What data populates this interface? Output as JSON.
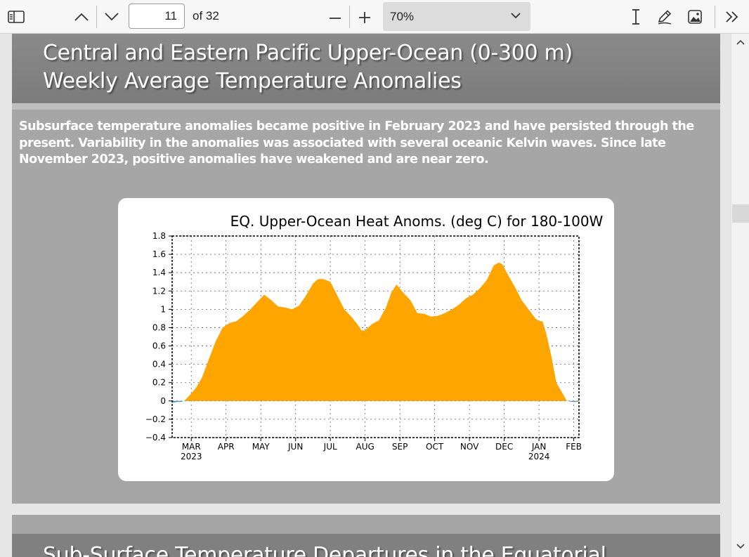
{
  "toolbar": {
    "page_current": "11",
    "page_total_label": "of 32",
    "zoom_label": "70%",
    "icons": [
      "sidebar-toggle-icon",
      "chevron-up-icon",
      "chevron-down-icon",
      "zoom-out-icon",
      "zoom-in-icon",
      "dropdown-caret-icon",
      "text-cursor-icon",
      "draw-pen-icon",
      "add-image-icon",
      "more-tools-icon"
    ]
  },
  "slide": {
    "title_line1": "Central and Eastern Pacific Upper-Ocean (0-300 m)",
    "title_line2": "Weekly Average Temperature Anomalies",
    "body_line1": "Subsurface temperature anomalies became positive in February 2023 and have persisted through the",
    "body_line2": "present.  Variability in the anomalies was associated with several oceanic Kelvin waves.  Since late",
    "body_line3": "November 2023, positive anomalies have weakened and are near zero."
  },
  "next_slide": {
    "title_partial": "Sub-Surface Temperature Departures in the Equatorial"
  },
  "chart_data": {
    "type": "area",
    "title": "EQ. Upper-Ocean Heat Anoms. (deg C) for 180-100W",
    "y_ticks": [
      "1.8",
      "1.6",
      "1.4",
      "1.2",
      "1",
      "0.8",
      "0.6",
      "0.4",
      "0.2",
      "0",
      "-0.2",
      "-0.4"
    ],
    "ylim": [
      -0.4,
      1.8
    ],
    "x_ticks": [
      {
        "label": "MAR",
        "year": "2023"
      },
      {
        "label": "APR",
        "year": ""
      },
      {
        "label": "MAY",
        "year": ""
      },
      {
        "label": "JUN",
        "year": ""
      },
      {
        "label": "JUL",
        "year": ""
      },
      {
        "label": "AUG",
        "year": ""
      },
      {
        "label": "SEP",
        "year": ""
      },
      {
        "label": "OCT",
        "year": ""
      },
      {
        "label": "NOV",
        "year": ""
      },
      {
        "label": "DEC",
        "year": ""
      },
      {
        "label": "JAN",
        "year": "2024"
      },
      {
        "label": "FEB",
        "year": ""
      }
    ],
    "x_unit": "months since start of March 2023",
    "grid": true,
    "positive_color": "#ffa500",
    "negative_color": "#4a90d9",
    "series": [
      {
        "x": [
          -0.55,
          -0.4,
          -0.3,
          -0.2,
          0.0,
          0.15,
          0.3,
          0.5,
          0.7,
          0.9,
          1.1,
          1.3,
          1.5,
          1.7,
          1.9,
          2.1,
          2.3,
          2.5,
          2.7,
          2.9,
          3.1,
          3.3,
          3.5,
          3.65,
          3.8,
          4.0,
          4.2,
          4.4,
          4.6,
          4.75,
          4.9,
          5.0,
          5.2,
          5.4,
          5.6,
          5.75,
          5.9,
          6.1,
          6.3,
          6.5,
          6.7,
          6.9,
          7.1,
          7.3,
          7.5,
          7.7,
          7.9,
          8.1,
          8.3,
          8.5,
          8.7,
          8.85,
          8.95,
          9.1,
          9.3,
          9.5,
          9.7,
          9.9,
          10.0,
          10.1,
          10.2,
          10.35,
          10.5,
          10.65,
          10.8,
          10.95,
          11.1,
          11.15
        ],
        "y": [
          -0.02,
          -0.01,
          -0.01,
          0.0,
          0.08,
          0.15,
          0.25,
          0.45,
          0.65,
          0.8,
          0.85,
          0.87,
          0.93,
          1.0,
          1.08,
          1.16,
          1.1,
          1.03,
          1.02,
          1.0,
          1.04,
          1.15,
          1.28,
          1.33,
          1.33,
          1.3,
          1.15,
          1.0,
          0.92,
          0.85,
          0.77,
          0.77,
          0.84,
          0.88,
          1.02,
          1.18,
          1.27,
          1.18,
          1.1,
          0.96,
          0.95,
          0.92,
          0.93,
          0.96,
          1.0,
          1.05,
          1.12,
          1.16,
          1.23,
          1.32,
          1.48,
          1.51,
          1.49,
          1.38,
          1.25,
          1.1,
          1.0,
          0.9,
          0.87,
          0.87,
          0.75,
          0.5,
          0.2,
          0.1,
          0.0,
          -0.01,
          -0.01,
          0.02
        ]
      }
    ]
  }
}
